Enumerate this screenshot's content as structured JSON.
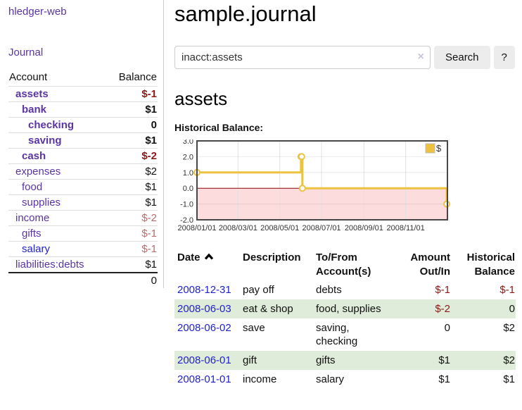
{
  "app": {
    "brand": "hledger-web"
  },
  "nav": {
    "journal": "Journal"
  },
  "sidebar": {
    "headers": {
      "account": "Account",
      "balance": "Balance"
    },
    "rows": [
      {
        "label": "assets",
        "depth": 1,
        "label_class": "purple bold",
        "balance": "$-1",
        "balance_class": "neg bold"
      },
      {
        "label": "bank",
        "depth": 2,
        "label_class": "purple bold",
        "balance": "$1",
        "balance_class": "bold"
      },
      {
        "label": "checking",
        "depth": 3,
        "label_class": "purple bold",
        "balance": "0",
        "balance_class": "bold"
      },
      {
        "label": "saving",
        "depth": 3,
        "label_class": "purple bold",
        "balance": "$1",
        "balance_class": "bold"
      },
      {
        "label": "cash",
        "depth": 2,
        "label_class": "purple bold",
        "balance": "$-2",
        "balance_class": "neg bold"
      },
      {
        "label": "expenses",
        "depth": 1,
        "label_class": "purple",
        "balance": "$2",
        "balance_class": ""
      },
      {
        "label": "food",
        "depth": 2,
        "label_class": "purple",
        "balance": "$1",
        "balance_class": ""
      },
      {
        "label": "supplies",
        "depth": 2,
        "label_class": "purple",
        "balance": "$1",
        "balance_class": ""
      },
      {
        "label": "income",
        "depth": 1,
        "label_class": "purple",
        "balance": "$-2",
        "balance_class": "negdim"
      },
      {
        "label": "gifts",
        "depth": 2,
        "label_class": "purple",
        "balance": "$-1",
        "balance_class": "negdim"
      },
      {
        "label": "salary",
        "depth": 2,
        "label_class": "blue",
        "balance": "$-1",
        "balance_class": "negdim"
      },
      {
        "label": "liabilities:debts",
        "depth": 1,
        "label_class": "purple",
        "balance": "$1",
        "balance_class": ""
      }
    ],
    "total": "0"
  },
  "main": {
    "title": "sample.journal",
    "search": {
      "value": "inacct:assets",
      "clear_icon": "×",
      "button_label": "Search",
      "help_label": "?"
    },
    "account_heading": "assets",
    "chart_title": "Historical Balance:"
  },
  "chart_data": {
    "type": "line",
    "style": "step",
    "title": "Historical Balance:",
    "legend": "$",
    "legend_position": "top-right",
    "series": [
      {
        "name": "$",
        "color": "#edc240",
        "points": [
          {
            "date": "2008-01-01",
            "t": 0.0,
            "value": 1
          },
          {
            "date": "2008-06-01",
            "t": 0.4153,
            "value": 2
          },
          {
            "date": "2008-06-02",
            "t": 0.418,
            "value": 2
          },
          {
            "date": "2008-06-03",
            "t": 0.4208,
            "value": 0
          },
          {
            "date": "2008-12-31",
            "t": 0.9973,
            "value": -1
          }
        ]
      }
    ],
    "ylim": [
      -2,
      3
    ],
    "yticks": [
      {
        "v": 3,
        "label": "3.0"
      },
      {
        "v": 2,
        "label": "2.0"
      },
      {
        "v": 1,
        "label": "1.0"
      },
      {
        "v": 0,
        "label": "0.0"
      },
      {
        "v": -1,
        "label": "-1.0"
      },
      {
        "v": -2,
        "label": "-2.0"
      }
    ],
    "xticks": [
      {
        "t": 0.0,
        "label": "2008/01/01"
      },
      {
        "t": 0.1639,
        "label": "2008/03/01"
      },
      {
        "t": 0.3306,
        "label": "2008/05/01"
      },
      {
        "t": 0.4973,
        "label": "2008/07/01"
      },
      {
        "t": 0.6667,
        "label": "2008/09/01"
      },
      {
        "t": 0.8333,
        "label": "2008/11/01"
      }
    ],
    "colors": {
      "negative_fill": "#fcdcdc",
      "zero_line": "#8b0000",
      "grid": "#e2e2e2",
      "border": "#474747"
    }
  },
  "register": {
    "sort_icon": "chevron-up",
    "headers": [
      {
        "line1": "Date",
        "line2": ""
      },
      {
        "line1": "Description",
        "line2": ""
      },
      {
        "line1": "To/From",
        "line2": "Account(s)"
      },
      {
        "line1": "Amount",
        "line2": "Out/In"
      },
      {
        "line1": "Historical",
        "line2": "Balance"
      }
    ],
    "rows": [
      {
        "date": "2008-12-31",
        "description": "pay off",
        "accounts": "debts",
        "amount": "$-1",
        "amount_class": "neg",
        "balance": "$-1",
        "balance_class": "neg"
      },
      {
        "date": "2008-06-03",
        "description": "eat & shop",
        "accounts": "food, supplies",
        "amount": "$-2",
        "amount_class": "neg",
        "balance": "0",
        "balance_class": ""
      },
      {
        "date": "2008-06-02",
        "description": "save",
        "accounts": "saving, checking",
        "amount": "0",
        "amount_class": "",
        "balance": "$2",
        "balance_class": ""
      },
      {
        "date": "2008-06-01",
        "description": "gift",
        "accounts": "gifts",
        "amount": "$1",
        "amount_class": "",
        "balance": "$2",
        "balance_class": ""
      },
      {
        "date": "2008-01-01",
        "description": "income",
        "accounts": "salary",
        "amount": "$1",
        "amount_class": "",
        "balance": "$1",
        "balance_class": ""
      }
    ]
  }
}
